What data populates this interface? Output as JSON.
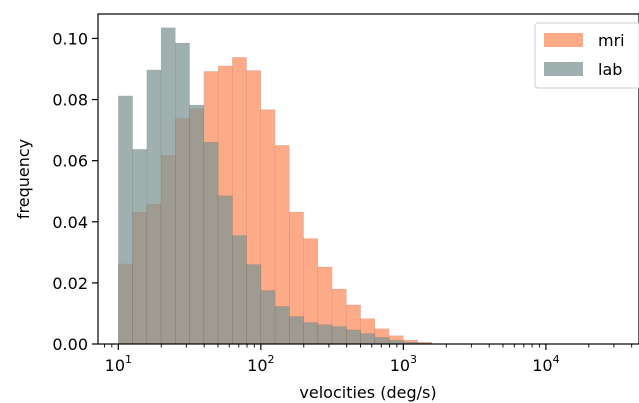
{
  "chart_data": {
    "type": "histogram",
    "x_scale": "log",
    "xlabel": "velocities (deg/s)",
    "ylabel": "frequency",
    "xlim": [
      7.2,
      45000
    ],
    "ylim": [
      0,
      0.108
    ],
    "xticks": [
      {
        "value": 10,
        "base": "10",
        "exp": "1"
      },
      {
        "value": 100,
        "base": "10",
        "exp": "2"
      },
      {
        "value": 1000,
        "base": "10",
        "exp": "3"
      },
      {
        "value": 10000,
        "base": "10",
        "exp": "4"
      }
    ],
    "yticks": [
      {
        "value": 0.0,
        "label": "0.00"
      },
      {
        "value": 0.02,
        "label": "0.02"
      },
      {
        "value": 0.04,
        "label": "0.04"
      },
      {
        "value": 0.06,
        "label": "0.06"
      },
      {
        "value": 0.08,
        "label": "0.08"
      },
      {
        "value": 0.1,
        "label": "0.10"
      }
    ],
    "bin_edges": [
      10,
      12.59,
      15.85,
      19.95,
      25.12,
      31.62,
      39.81,
      50.12,
      63.1,
      79.43,
      100,
      125.9,
      158.5,
      199.5,
      251.2,
      316.2,
      398.1,
      501.2,
      631,
      794.3,
      1000,
      1259,
      1585
    ],
    "series": [
      {
        "name": "mri",
        "color": "#fc8d62",
        "values": [
          0.0262,
          0.0432,
          0.0458,
          0.0618,
          0.0738,
          0.077,
          0.0892,
          0.091,
          0.0938,
          0.0895,
          0.0767,
          0.065,
          0.0432,
          0.0345,
          0.0252,
          0.018,
          0.0128,
          0.0083,
          0.005,
          0.0027,
          0.0013,
          0.0006
        ]
      },
      {
        "name": "lab",
        "color": "#7f9694",
        "values": [
          0.0812,
          0.0637,
          0.0897,
          0.1035,
          0.0985,
          0.0782,
          0.066,
          0.0485,
          0.0355,
          0.026,
          0.0175,
          0.0123,
          0.009,
          0.007,
          0.0063,
          0.0057,
          0.0046,
          0.0034,
          0.0022,
          0.0012,
          0.0006,
          0.0003
        ]
      }
    ],
    "legend": {
      "position": "top-right",
      "entries": [
        "mri",
        "lab"
      ]
    },
    "grid": false
  }
}
